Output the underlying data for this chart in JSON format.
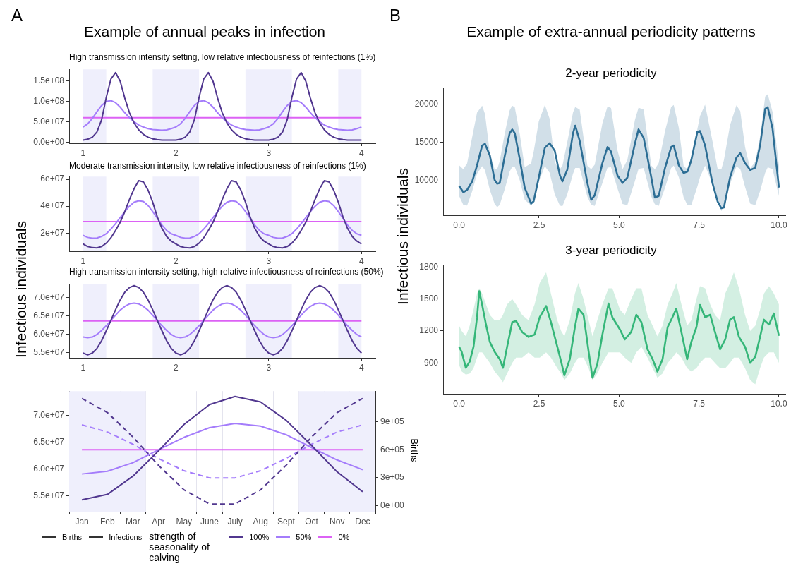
{
  "chart_data": [
    {
      "type": "line",
      "title": "Example of annual peaks in infection",
      "subtitle": "High transmission intensity setting, low relative infectiousness of reinfections (1%)",
      "annotations": [
        "A"
      ],
      "x": [
        1,
        1.05,
        1.1,
        1.15,
        1.2,
        1.25,
        1.3,
        1.35,
        1.4,
        1.45,
        1.5,
        1.55,
        1.6,
        1.65,
        1.7,
        1.75,
        1.8,
        1.85,
        1.9,
        1.95,
        2,
        2.05,
        2.1,
        2.15,
        2.2,
        2.25,
        2.3,
        2.35,
        2.4,
        2.45,
        2.5,
        2.55,
        2.6,
        2.65,
        2.7,
        2.75,
        2.8,
        2.85,
        2.9,
        2.95,
        3,
        3.05,
        3.1,
        3.15,
        3.2,
        3.25,
        3.3,
        3.35,
        3.4,
        3.45,
        3.5,
        3.55,
        3.6,
        3.65,
        3.7,
        3.75,
        3.8,
        3.85,
        3.9,
        3.95,
        4
      ],
      "series": [
        {
          "color": "#51378f",
          "values": [
            5000000.0,
            7000000.0,
            12000000.0,
            25000000.0,
            55000000.0,
            110000000.0,
            155000000.0,
            171000000.0,
            150000000.0,
            108000000.0,
            72000000.0,
            47000000.0,
            30000000.0,
            19000000.0,
            12000000.0,
            8000000.0,
            6000000.0,
            5000000.0,
            5000000.0,
            5000000.0,
            5000000.0,
            7000000.0,
            12000000.0,
            25000000.0,
            55000000.0,
            110000000.0,
            155000000.0,
            171000000.0,
            150000000.0,
            108000000.0,
            72000000.0,
            47000000.0,
            30000000.0,
            19000000.0,
            12000000.0,
            8000000.0,
            6000000.0,
            5000000.0,
            5000000.0,
            5000000.0,
            5000000.0,
            7000000.0,
            12000000.0,
            25000000.0,
            55000000.0,
            110000000.0,
            155000000.0,
            171000000.0,
            150000000.0,
            108000000.0,
            72000000.0,
            47000000.0,
            30000000.0,
            19000000.0,
            12000000.0,
            8000000.0,
            6000000.0,
            5000000.0,
            5000000.0,
            5000000.0,
            5000000.0
          ]
        },
        {
          "color": "#a47cfb",
          "values": [
            37000000.0,
            45000000.0,
            58000000.0,
            75000000.0,
            90000000.0,
            100000000.0,
            102000000.0,
            97000000.0,
            86000000.0,
            72000000.0,
            60000000.0,
            50000000.0,
            42000000.0,
            37000000.0,
            33000000.0,
            31000000.0,
            30000000.0,
            29000000.0,
            30000000.0,
            33000000.0,
            37000000.0,
            45000000.0,
            58000000.0,
            75000000.0,
            90000000.0,
            100000000.0,
            102000000.0,
            97000000.0,
            86000000.0,
            72000000.0,
            60000000.0,
            50000000.0,
            42000000.0,
            37000000.0,
            33000000.0,
            31000000.0,
            30000000.0,
            29000000.0,
            30000000.0,
            33000000.0,
            37000000.0,
            45000000.0,
            58000000.0,
            75000000.0,
            90000000.0,
            100000000.0,
            102000000.0,
            97000000.0,
            86000000.0,
            72000000.0,
            60000000.0,
            50000000.0,
            42000000.0,
            37000000.0,
            33000000.0,
            31000000.0,
            30000000.0,
            29000000.0,
            30000000.0,
            33000000.0,
            37000000.0
          ]
        },
        {
          "color": "#dc62f5",
          "x": [
            1,
            4
          ],
          "values": [
            60000000.0,
            60000000.0
          ]
        }
      ],
      "xlim": [
        0.85,
        4.15
      ],
      "xticks": [
        1,
        2,
        3,
        4
      ],
      "ylim": [
        -3000000.0,
        179000000.0
      ],
      "yticks": [
        {
          "value": 0,
          "label": "0.0e+00"
        },
        {
          "value": 50000000.0,
          "label": "5.0e+07"
        },
        {
          "value": 100000000.0,
          "label": "1.0e+08"
        },
        {
          "value": 150000000.0,
          "label": "1.5e+08"
        }
      ],
      "bands": [
        {
          "axis": "x",
          "from": 1,
          "to": 1.25,
          "color": "#efeffc"
        },
        {
          "axis": "x",
          "from": 1.75,
          "to": 2.25,
          "color": "#efeffc"
        },
        {
          "axis": "x",
          "from": 2.75,
          "to": 3.25,
          "color": "#efeffc"
        },
        {
          "axis": "x",
          "from": 3.75,
          "to": 4,
          "color": "#efeffc"
        }
      ]
    },
    {
      "type": "line",
      "title": "Moderate transmission intensity, low relative infectiousness of reinfections (1%)",
      "ylabel": "Infectious individuals",
      "x": [
        1,
        1.05,
        1.1,
        1.15,
        1.2,
        1.25,
        1.3,
        1.35,
        1.4,
        1.45,
        1.5,
        1.55,
        1.6,
        1.65,
        1.7,
        1.75,
        1.8,
        1.85,
        1.9,
        1.95,
        2,
        2.05,
        2.1,
        2.15,
        2.2,
        2.25,
        2.3,
        2.35,
        2.4,
        2.45,
        2.5,
        2.55,
        2.6,
        2.65,
        2.7,
        2.75,
        2.8,
        2.85,
        2.9,
        2.95,
        3,
        3.05,
        3.1,
        3.15,
        3.2,
        3.25,
        3.3,
        3.35,
        3.4,
        3.45,
        3.5,
        3.55,
        3.6,
        3.65,
        3.7,
        3.75,
        3.8,
        3.85,
        3.9,
        3.95,
        4
      ],
      "series": [
        {
          "color": "#51378f",
          "values": [
            12000000.0,
            10000000.0,
            9200000.0,
            9000000.0,
            10000000.0,
            12500000.0,
            16500000.0,
            22000000.0,
            28000000.0,
            36000000.0,
            45000000.0,
            53000000.0,
            59000000.0,
            58000000.0,
            52000000.0,
            43000000.0,
            32000000.0,
            23500000.0,
            17500000.0,
            14000000.0,
            12000000.0,
            10000000.0,
            9200000.0,
            9000000.0,
            10000000.0,
            12500000.0,
            16500000.0,
            22000000.0,
            28000000.0,
            36000000.0,
            45000000.0,
            53000000.0,
            59000000.0,
            58000000.0,
            52000000.0,
            43000000.0,
            32000000.0,
            23500000.0,
            17500000.0,
            14000000.0,
            12000000.0,
            10000000.0,
            9200000.0,
            9000000.0,
            10000000.0,
            12500000.0,
            16500000.0,
            22000000.0,
            28000000.0,
            36000000.0,
            45000000.0,
            53000000.0,
            59000000.0,
            58000000.0,
            52000000.0,
            43000000.0,
            32000000.0,
            23500000.0,
            17500000.0,
            14000000.0,
            12000000.0
          ]
        },
        {
          "color": "#a47cfb",
          "values": [
            18300000.0,
            16800000.0,
            16200000.0,
            16300000.0,
            17500000.0,
            19500000.0,
            23000000.0,
            27000000.0,
            31500000.0,
            36000000.0,
            40000000.0,
            43000000.0,
            44000000.0,
            43500000.0,
            40500000.0,
            36000000.0,
            31000000.0,
            26000000.0,
            22000000.0,
            19500000.0,
            18300000.0,
            16800000.0,
            16200000.0,
            16300000.0,
            17500000.0,
            19500000.0,
            23000000.0,
            27000000.0,
            31500000.0,
            36000000.0,
            40000000.0,
            43000000.0,
            44000000.0,
            43500000.0,
            40500000.0,
            36000000.0,
            31000000.0,
            26000000.0,
            22000000.0,
            19500000.0,
            18300000.0,
            16800000.0,
            16200000.0,
            16300000.0,
            17500000.0,
            19500000.0,
            23000000.0,
            27000000.0,
            31500000.0,
            36000000.0,
            40000000.0,
            43000000.0,
            44000000.0,
            43500000.0,
            40500000.0,
            36000000.0,
            31000000.0,
            26000000.0,
            22000000.0,
            19500000.0,
            18300000.0
          ]
        },
        {
          "color": "#dc62f5",
          "x": [
            1,
            4
          ],
          "values": [
            28500000.0,
            28500000.0
          ]
        }
      ],
      "xlim": [
        0.85,
        4.15
      ],
      "xticks": [
        1,
        2,
        3,
        4
      ],
      "ylim": [
        6500000.0,
        62000000.0
      ],
      "yticks": [
        {
          "value": 20000000.0,
          "label": "2e+07"
        },
        {
          "value": 40000000.0,
          "label": "4e+07"
        },
        {
          "value": 60000000.0,
          "label": "6e+07"
        }
      ],
      "bands": [
        {
          "axis": "x",
          "from": 1,
          "to": 1.25,
          "color": "#efeffc"
        },
        {
          "axis": "x",
          "from": 1.75,
          "to": 2.25,
          "color": "#efeffc"
        },
        {
          "axis": "x",
          "from": 2.75,
          "to": 3.25,
          "color": "#efeffc"
        },
        {
          "axis": "x",
          "from": 3.75,
          "to": 4,
          "color": "#efeffc"
        }
      ]
    },
    {
      "type": "line",
      "title": "High transmission intensity setting, high relative infectiousness of reinfections (50%)",
      "x": [
        1,
        1.05,
        1.1,
        1.15,
        1.2,
        1.25,
        1.3,
        1.35,
        1.4,
        1.45,
        1.5,
        1.55,
        1.6,
        1.65,
        1.7,
        1.75,
        1.8,
        1.85,
        1.9,
        1.95,
        2,
        2.05,
        2.1,
        2.15,
        2.2,
        2.25,
        2.3,
        2.35,
        2.4,
        2.45,
        2.5,
        2.55,
        2.6,
        2.65,
        2.7,
        2.75,
        2.8,
        2.85,
        2.9,
        2.95,
        3,
        3.05,
        3.1,
        3.15,
        3.2,
        3.25,
        3.3,
        3.35,
        3.4,
        3.45,
        3.5,
        3.55,
        3.6,
        3.65,
        3.7,
        3.75,
        3.8,
        3.85,
        3.9,
        3.95,
        4
      ],
      "series": [
        {
          "color": "#51378f",
          "values": [
            54800000.0,
            54300000.0,
            54800000.0,
            56100000.0,
            58200000.0,
            60900000.0,
            63800000.0,
            66700000.0,
            69400000.0,
            71500000.0,
            72800000.0,
            73300000.0,
            72800000.0,
            71500000.0,
            69400000.0,
            66700000.0,
            63800000.0,
            60900000.0,
            58200000.0,
            56100000.0,
            54800000.0,
            54300000.0,
            54800000.0,
            56100000.0,
            58200000.0,
            60900000.0,
            63800000.0,
            66700000.0,
            69400000.0,
            71500000.0,
            72800000.0,
            73300000.0,
            72800000.0,
            71500000.0,
            69400000.0,
            66700000.0,
            63800000.0,
            60900000.0,
            58200000.0,
            56100000.0,
            54800000.0,
            54300000.0,
            54800000.0,
            56100000.0,
            58200000.0,
            60900000.0,
            63800000.0,
            66700000.0,
            69400000.0,
            71500000.0,
            72800000.0,
            73300000.0,
            72800000.0,
            71500000.0,
            69400000.0,
            66700000.0,
            63800000.0,
            60900000.0,
            58200000.0,
            56100000.0,
            54800000.0
          ]
        },
        {
          "color": "#a47cfb",
          "values": [
            59200000.0,
            59000000.0,
            59200000.0,
            59900000.0,
            61000000.0,
            62300000.0,
            63800000.0,
            65200000.0,
            66600000.0,
            67600000.0,
            68300000.0,
            68500000.0,
            68300000.0,
            67600000.0,
            66600000.0,
            65200000.0,
            63800000.0,
            62300000.0,
            61000000.0,
            59900000.0,
            59200000.0,
            59000000.0,
            59200000.0,
            59900000.0,
            61000000.0,
            62300000.0,
            63800000.0,
            65200000.0,
            66600000.0,
            67600000.0,
            68300000.0,
            68500000.0,
            68300000.0,
            67600000.0,
            66600000.0,
            65200000.0,
            63800000.0,
            62300000.0,
            61000000.0,
            59900000.0,
            59200000.0,
            59000000.0,
            59200000.0,
            59900000.0,
            61000000.0,
            62300000.0,
            63800000.0,
            65200000.0,
            66600000.0,
            67600000.0,
            68300000.0,
            68500000.0,
            68300000.0,
            67600000.0,
            66600000.0,
            65200000.0,
            63800000.0,
            62300000.0,
            61000000.0,
            59900000.0,
            59200000.0
          ]
        },
        {
          "color": "#dc62f5",
          "x": [
            1,
            4
          ],
          "values": [
            63600000.0,
            63600000.0
          ]
        }
      ],
      "xlim": [
        0.85,
        4.15
      ],
      "xticks": [
        1,
        2,
        3,
        4
      ],
      "ylim": [
        53500000.0,
        73800000.0
      ],
      "yticks": [
        {
          "value": 55000000.0,
          "label": "5.5e+07"
        },
        {
          "value": 60000000.0,
          "label": "6.0e+07"
        },
        {
          "value": 65000000.0,
          "label": "6.5e+07"
        },
        {
          "value": 70000000.0,
          "label": "7.0e+07"
        }
      ],
      "bands": [
        {
          "axis": "x",
          "from": 1,
          "to": 1.25,
          "color": "#efeffc"
        },
        {
          "axis": "x",
          "from": 1.75,
          "to": 2.25,
          "color": "#efeffc"
        },
        {
          "axis": "x",
          "from": 2.75,
          "to": 3.25,
          "color": "#efeffc"
        },
        {
          "axis": "x",
          "from": 3.75,
          "to": 4,
          "color": "#efeffc"
        }
      ]
    },
    {
      "type": "line",
      "y2label": "Births",
      "legend": "bottom",
      "legend_title": "strength of seasonality of calving",
      "annotations": [
        "Births",
        "Infections"
      ],
      "grid": "x",
      "categories": [
        "Jan",
        "Feb",
        "Mar",
        "Apr",
        "May",
        "June",
        "July",
        "Aug",
        "Sept",
        "Oct",
        "Nov",
        "Dec"
      ],
      "series": [
        {
          "name": "100%",
          "color": "#51378f",
          "values": [
            54300000.0,
            55300000.0,
            58700000.0,
            63400000.0,
            68300000.0,
            72000000.0,
            73500000.0,
            72500000.0,
            69100000.0,
            64400000.0,
            59500000.0,
            55800000.0
          ]
        },
        {
          "name": "50%",
          "color": "#a47cfb",
          "values": [
            59100000.0,
            59600000.0,
            61200000.0,
            63600000.0,
            65900000.0,
            67700000.0,
            68500000.0,
            68000000.0,
            66400000.0,
            64000000.0,
            61700000.0,
            59900000.0
          ]
        },
        {
          "color": "#51378f",
          "axis": "y2",
          "line_style": "dashed",
          "values": [
            1148000.0,
            997000.0,
            735000.0,
            433000.0,
            171000.0,
            20000.0,
            20000.0,
            171000.0,
            433000.0,
            735000.0,
            997000.0,
            1148000.0
          ]
        },
        {
          "color": "#a47cfb",
          "axis": "y2",
          "line_style": "dashed",
          "values": [
            865000.0,
            789000.0,
            658000.0,
            506000.0,
            375000.0,
            299000.0,
            299000.0,
            375000.0,
            506000.0,
            658000.0,
            789000.0,
            865000.0
          ]
        },
        {
          "name": "0%",
          "color": "#dc62f5",
          "values": [
            63600000.0,
            63600000.0,
            63600000.0,
            63600000.0,
            63600000.0,
            63600000.0,
            63600000.0,
            63600000.0,
            63600000.0,
            63600000.0,
            63600000.0,
            63600000.0
          ]
        }
      ],
      "ylim": [
        52100000.0,
        74500000.0
      ],
      "yticks": [
        {
          "value": 55000000.0,
          "label": "5.5e+07"
        },
        {
          "value": 60000000.0,
          "label": "6.0e+07"
        },
        {
          "value": 65000000.0,
          "label": "6.5e+07"
        },
        {
          "value": 70000000.0,
          "label": "7.0e+07"
        }
      ],
      "y2lim": [
        -62000,
        1226000
      ],
      "y2ticks": [
        {
          "value": 0,
          "label": "0e+00"
        },
        {
          "value": 300000.0,
          "label": "3e+05"
        },
        {
          "value": 600000.0,
          "label": "6e+05"
        },
        {
          "value": 900000.0,
          "label": "9e+05"
        }
      ],
      "bands": [
        {
          "axis": "x",
          "from": "Jan",
          "to": "Mar",
          "color": "#efeffc"
        },
        {
          "axis": "x",
          "from": "Oct",
          "to": "Dec",
          "color": "#efeffc"
        }
      ]
    },
    {
      "type": "line",
      "title": "Example of extra-annual periodicity patterns",
      "subtitle": "2-year periodicity",
      "ylabel": "Infectious individuals",
      "annotations": [
        "B"
      ],
      "series": [
        {
          "color": "#2e6f95",
          "x": [
            0,
            0.13,
            0.25,
            0.41,
            0.56,
            0.72,
            0.81,
            0.96,
            1.11,
            1.19,
            1.27,
            1.43,
            1.58,
            1.66,
            1.74,
            1.9,
            2.05,
            2.25,
            2.33,
            2.49,
            2.68,
            2.83,
            2.99,
            3.15,
            3.23,
            3.38,
            3.56,
            3.63,
            3.77,
            4.01,
            4.13,
            4.24,
            4.48,
            4.64,
            4.75,
            4.95,
            5.11,
            5.26,
            5.5,
            5.61,
            5.77,
            6.01,
            6.12,
            6.24,
            6.44,
            6.63,
            6.71,
            6.87,
            7.02,
            7.14,
            7.26,
            7.45,
            7.53,
            7.69,
            7.92,
            8.08,
            8.2,
            8.28,
            8.47,
            8.67,
            8.79,
            8.94,
            9.1,
            9.26,
            9.41,
            9.57,
            9.65,
            9.8,
            10
          ],
          "values": [
            9300,
            8500,
            8800,
            9900,
            12000,
            14600,
            14800,
            13300,
            10100,
            9600,
            9700,
            13300,
            16200,
            16700,
            16200,
            12700,
            9100,
            7000,
            7300,
            10400,
            14300,
            14900,
            13900,
            10700,
            9900,
            11400,
            16200,
            17200,
            15200,
            9700,
            7500,
            8100,
            12300,
            14400,
            13800,
            10700,
            9700,
            10400,
            14900,
            16700,
            15600,
            10400,
            7800,
            8000,
            11700,
            14400,
            14600,
            12000,
            11000,
            11200,
            12700,
            16400,
            16500,
            14600,
            9700,
            7300,
            6400,
            6500,
            10400,
            13000,
            13600,
            12300,
            11400,
            11700,
            14600,
            19400,
            19600,
            16800,
            9100
          ],
          "lower": [
            8000,
            6850,
            6750,
            8650,
            10900,
            11900,
            11350,
            8800,
            6950,
            6550,
            6850,
            8950,
            11200,
            11800,
            11800,
            10000,
            7500,
            6750,
            7450,
            9850,
            11900,
            11050,
            8200,
            6750,
            6650,
            8200,
            10900,
            11650,
            11650,
            7900,
            6850,
            6700,
            9700,
            11700,
            11750,
            9000,
            6950,
            6800,
            10000,
            11550,
            11650,
            7900,
            6900,
            6700,
            9100,
            11650,
            11950,
            10450,
            7800,
            6800,
            6800,
            9250,
            10450,
            11950,
            9600,
            7200,
            6000,
            6900,
            9550,
            11850,
            11550,
            9200,
            7000,
            6800,
            8650,
            11050,
            11750,
            11500,
            8000
          ],
          "upper": [
            12000,
            11500,
            12250,
            15750,
            18900,
            19800,
            18700,
            13600,
            11500,
            11500,
            12550,
            16250,
            19200,
            19800,
            19600,
            16000,
            11750,
            12250,
            13750,
            17750,
            19900,
            18100,
            12400,
            11500,
            11950,
            15000,
            18900,
            19650,
            19300,
            11950,
            11500,
            12100,
            17500,
            19700,
            19500,
            14000,
            11500,
            12700,
            18000,
            19550,
            19300,
            11950,
            11500,
            12300,
            16500,
            19650,
            19900,
            16900,
            11900,
            11500,
            12700,
            16750,
            18450,
            19950,
            15200,
            11600,
            11500,
            12700,
            17250,
            19850,
            19100,
            14400,
            11600,
            12500,
            15750,
            21000,
            21300,
            19000,
            12000
          ]
        }
      ],
      "xlim": [
        -0.5,
        10.2
      ],
      "xticks": [
        {
          "value": 0,
          "label": "0.0"
        },
        2.5,
        {
          "value": 5,
          "label": "5.0"
        },
        7.5,
        {
          "value": 10,
          "label": "10.0"
        }
      ],
      "ylim": [
        5480,
        22160
      ],
      "yticks": [
        10000,
        15000,
        20000
      ]
    },
    {
      "type": "line",
      "title": "3-year periodicity",
      "series": [
        {
          "color": "#35b779",
          "x": [
            0,
            0.08,
            0.21,
            0.33,
            0.45,
            0.56,
            0.63,
            0.72,
            0.84,
            0.96,
            1.11,
            1.27,
            1.37,
            1.5,
            1.66,
            1.78,
            1.97,
            2.17,
            2.36,
            2.52,
            2.72,
            2.87,
            3.07,
            3.19,
            3.29,
            3.46,
            3.62,
            3.73,
            3.89,
            4.05,
            4.17,
            4.32,
            4.48,
            4.67,
            4.79,
            5.03,
            5.18,
            5.38,
            5.54,
            5.7,
            5.89,
            6.05,
            6.2,
            6.36,
            6.52,
            6.67,
            6.79,
            6.95,
            7.13,
            7.26,
            7.42,
            7.53,
            7.69,
            7.85,
            8,
            8.16,
            8.32,
            8.47,
            8.59,
            8.75,
            8.94,
            9.1,
            9.26,
            9.41,
            9.53,
            9.69,
            9.84,
            10
          ],
          "values": [
            1051,
            1004,
            854,
            912,
            1051,
            1329,
            1573,
            1445,
            1260,
            1097,
            1004,
            935,
            854,
            1051,
            1283,
            1294,
            1190,
            1144,
            1167,
            1329,
            1434,
            1283,
            1051,
            912,
            784,
            935,
            1236,
            1410,
            1352,
            1004,
            761,
            888,
            1167,
            1457,
            1329,
            1213,
            1120,
            1190,
            1352,
            1283,
            1028,
            935,
            819,
            935,
            1236,
            1329,
            1410,
            1190,
            935,
            1097,
            1236,
            1445,
            1329,
            1352,
            1190,
            1028,
            1120,
            1306,
            1329,
            1144,
            1051,
            900,
            958,
            1144,
            1306,
            1260,
            1364,
            1155
          ],
          "lower": [
            880,
            820,
            790,
            800,
            850,
            950,
            1000,
            1000,
            950,
            900,
            820,
            760,
            720,
            800,
            900,
            950,
            950,
            1000,
            950,
            950,
            1000,
            950,
            850,
            800,
            740,
            800,
            900,
            950,
            950,
            850,
            740,
            800,
            900,
            1000,
            1000,
            1000,
            950,
            900,
            1000,
            1050,
            950,
            850,
            760,
            800,
            900,
            950,
            1000,
            950,
            850,
            820,
            850,
            900,
            950,
            950,
            900,
            850,
            850,
            900,
            950,
            950,
            850,
            740,
            700,
            850,
            950,
            1000,
            1000,
            900
          ],
          "upper": [
            1250,
            1200,
            1150,
            1250,
            1400,
            1550,
            1600,
            1550,
            1450,
            1350,
            1300,
            1300,
            1350,
            1450,
            1500,
            1450,
            1350,
            1300,
            1450,
            1650,
            1750,
            1550,
            1300,
            1200,
            1150,
            1300,
            1550,
            1650,
            1500,
            1300,
            1150,
            1300,
            1450,
            1600,
            1600,
            1400,
            1350,
            1500,
            1600,
            1600,
            1350,
            1250,
            1150,
            1250,
            1450,
            1550,
            1650,
            1450,
            1250,
            1300,
            1500,
            1620,
            1600,
            1450,
            1350,
            1300,
            1550,
            1650,
            1750,
            1600,
            1350,
            1200,
            1250,
            1400,
            1550,
            1620,
            1550,
            1450
          ]
        }
      ],
      "xlim": [
        -0.5,
        10.2
      ],
      "xticks": [
        {
          "value": 0,
          "label": "0.0"
        },
        2.5,
        {
          "value": 5,
          "label": "5.0"
        },
        7.5,
        {
          "value": 10,
          "label": "10.0"
        }
      ],
      "ylim": [
        610,
        1821
      ],
      "yticks": [
        900,
        1200,
        1500,
        1800
      ]
    }
  ]
}
